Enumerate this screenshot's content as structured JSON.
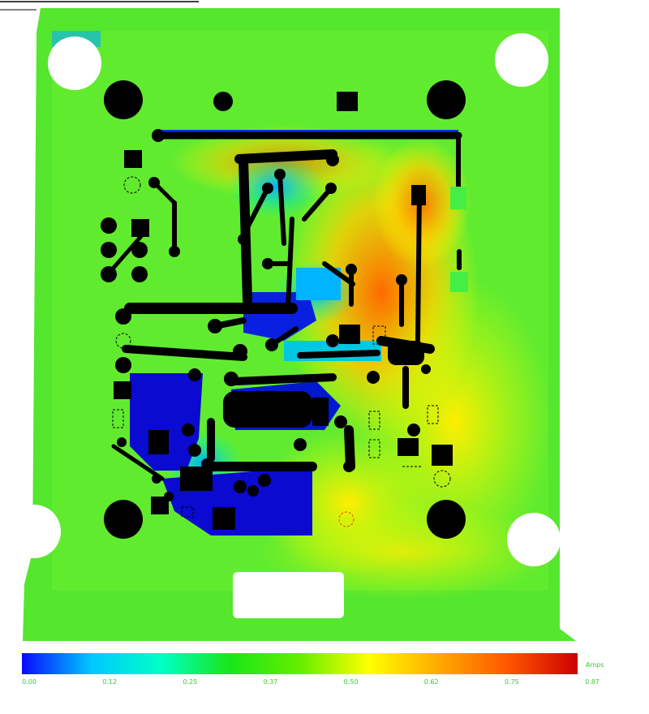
{
  "legend": {
    "unit": "Amps",
    "ticks": [
      "0.00",
      "0.12",
      "0.25",
      "0.37",
      "0.50",
      "0.62",
      "0.75",
      "0.87"
    ],
    "gradient": [
      "#0a0aff",
      "#00c8ff",
      "#00ffc8",
      "#19e619",
      "#66ee00",
      "#ffff00",
      "#ffaa00",
      "#ff5500",
      "#cc0000"
    ]
  },
  "colors": {
    "board": "#55e62e",
    "board_light": "#7af23c",
    "copper": "#000000",
    "hot": "#ff8a00",
    "warm": "#ffe200",
    "cool": "#0020d8",
    "mid": "#00d0e0",
    "background": "#ffffff"
  }
}
